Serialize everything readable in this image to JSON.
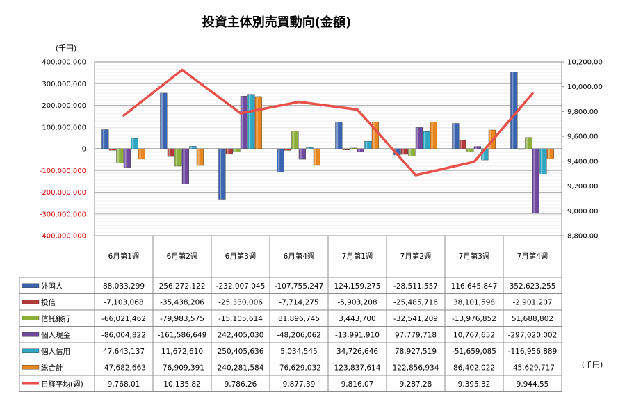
{
  "chart_data": {
    "type": "bar",
    "title": "投資主体別売買動向(金額)",
    "left_unit": "(千円)",
    "table_unit": "(千円)",
    "categories": [
      "6月第1週",
      "6月第2週",
      "6月第3週",
      "6月第4週",
      "7月第1週",
      "7月第2週",
      "7月第3週",
      "7月第4週"
    ],
    "left_axis": {
      "ylim": [
        -400000000,
        400000000
      ],
      "ticks": [
        "400,000,000",
        "300,000,000",
        "200,000,000",
        "100,000,000",
        "0",
        "-100,000,000",
        "-200,000,000",
        "-300,000,000",
        "-400,000,000"
      ],
      "negative_tick_color": "#e00000"
    },
    "right_axis": {
      "ylim": [
        8800,
        10200
      ],
      "ticks": [
        "10,200.00",
        "10,000.00",
        "9,800.00",
        "9,600.00",
        "9,400.00",
        "9,200.00",
        "9,000.00",
        "8,800.00"
      ]
    },
    "grid": true,
    "legend": "table-left",
    "series": [
      {
        "name": "外国人",
        "kind": "bar",
        "color": "#3a63b0",
        "values": [
          88033299,
          256272122,
          -232007045,
          -107755247,
          124159275,
          -28511557,
          116645847,
          352623255
        ],
        "labels": [
          "88,033,299",
          "256,272,122",
          "-232,007,045",
          "-107,755,247",
          "124,159,275",
          "-28,511,557",
          "116,645,847",
          "352,623,255"
        ]
      },
      {
        "name": "投信",
        "kind": "bar",
        "color": "#b03a3a",
        "values": [
          -7103068,
          -35438206,
          -25330006,
          -7714275,
          -5903208,
          -25485716,
          38101598,
          -2901207
        ],
        "labels": [
          "-7,103,068",
          "-35,438,206",
          "-25,330,006",
          "-7,714,275",
          "-5,903,208",
          "-25,485,716",
          "38,101,598",
          "-2,901,207"
        ]
      },
      {
        "name": "信託銀行",
        "kind": "bar",
        "color": "#8db03a",
        "values": [
          -66021462,
          -79983575,
          -15105614,
          81896745,
          3443700,
          -32541209,
          -13976852,
          51688802
        ],
        "labels": [
          "-66,021,462",
          "-79,983,575",
          "-15,105,614",
          "81,896,745",
          "3,443,700",
          "-32,541,209",
          "-13,976,852",
          "51,688,802"
        ]
      },
      {
        "name": "個人現金",
        "kind": "bar",
        "color": "#6e4a9e",
        "values": [
          -86004822,
          -161586649,
          242405030,
          -48206062,
          -13991910,
          97779718,
          10767652,
          -297020002
        ],
        "labels": [
          "-86,004,822",
          "-161,586,649",
          "242,405,030",
          "-48,206,062",
          "-13,991,910",
          "97,779,718",
          "10,767,652",
          "-297,020,002"
        ]
      },
      {
        "name": "個人信用",
        "kind": "bar",
        "color": "#2fa6c2",
        "values": [
          47643137,
          11672610,
          250405636,
          5034545,
          34726646,
          78927519,
          -51659085,
          -116956889
        ],
        "labels": [
          "47,643,137",
          "11,672,610",
          "250,405,636",
          "5,034,545",
          "34,726,646",
          "78,927,519",
          "-51,659,085",
          "-116,956,889"
        ]
      },
      {
        "name": "総合計",
        "kind": "bar",
        "color": "#e8861f",
        "values": [
          -47682663,
          -76909391,
          240281584,
          -76629032,
          123837614,
          122856934,
          86402022,
          -45629717
        ],
        "labels": [
          "-47,682,663",
          "-76,909,391",
          "240,281,584",
          "-76,629,032",
          "123,837,614",
          "122,856,934",
          "86,402,022",
          "-45,629,717"
        ]
      },
      {
        "name": "日経平均(週)",
        "kind": "line",
        "color": "#e8504a",
        "values": [
          9768.01,
          10135.82,
          9786.26,
          9877.39,
          9816.07,
          9287.28,
          9395.32,
          9944.55
        ],
        "labels": [
          "9,768.01",
          "10,135.82",
          "9,786.26",
          "9,877.39",
          "9,816.07",
          "9,287.28",
          "9,395.32",
          "9,944.55"
        ]
      }
    ]
  }
}
